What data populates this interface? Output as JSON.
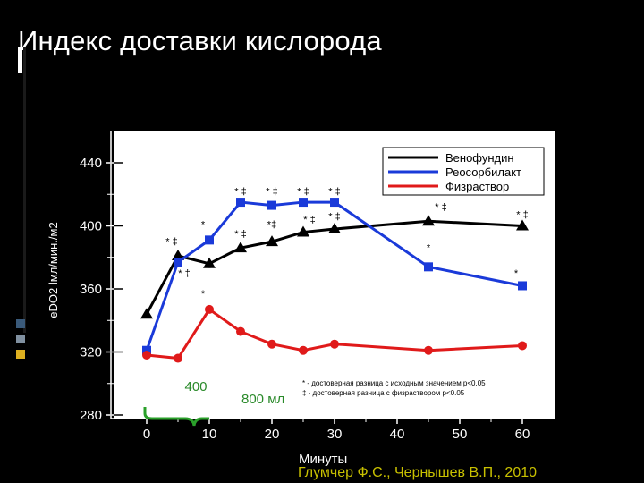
{
  "page": {
    "title": "Индекс доставки кислорода",
    "credit": "Глумчер Ф.С., Чернышев В.П., 2010"
  },
  "chart_data": {
    "type": "line",
    "xlabel": "Минуты",
    "ylabel": "eDO2 lмл/мин./м2",
    "xticks": [
      0,
      10,
      20,
      30,
      40,
      50,
      60
    ],
    "yticks": [
      280,
      320,
      360,
      400,
      440
    ],
    "xlim": [
      -5,
      65
    ],
    "ylim": [
      280,
      450
    ],
    "grid": false,
    "legend_position": "top-right",
    "series": [
      {
        "name": "Венофундин",
        "color": "#000000",
        "marker": "triangle",
        "x": [
          0,
          5,
          10,
          15,
          20,
          25,
          30,
          45,
          60
        ],
        "y": [
          344,
          381,
          376,
          386,
          390,
          396,
          398,
          403,
          400
        ]
      },
      {
        "name": "Реосорбилакт",
        "color": "#1a3ad9",
        "marker": "square",
        "x": [
          0,
          5,
          10,
          15,
          20,
          25,
          30,
          45,
          60
        ],
        "y": [
          321,
          377,
          391,
          415,
          413,
          415,
          415,
          374,
          362
        ]
      },
      {
        "name": "Физраствор",
        "color": "#e01a1a",
        "marker": "circle",
        "x": [
          0,
          5,
          10,
          15,
          20,
          25,
          30,
          45,
          60
        ],
        "y": [
          318,
          316,
          347,
          333,
          325,
          321,
          325,
          321,
          324
        ]
      }
    ],
    "annotations": [
      {
        "x": 4,
        "y": 388,
        "text": "* ‡"
      },
      {
        "x": 9,
        "y": 399,
        "text": "*"
      },
      {
        "x": 6,
        "y": 368,
        "text": "* ‡"
      },
      {
        "x": 10,
        "y": 371,
        "text": "*"
      },
      {
        "x": 9,
        "y": 355,
        "text": "*"
      },
      {
        "x": 15,
        "y": 420,
        "text": "* ‡"
      },
      {
        "x": 15,
        "y": 393,
        "text": "* ‡"
      },
      {
        "x": 20,
        "y": 420,
        "text": "* ‡"
      },
      {
        "x": 20,
        "y": 399,
        "text": "*‡"
      },
      {
        "x": 25,
        "y": 420,
        "text": "* ‡"
      },
      {
        "x": 26,
        "y": 402,
        "text": "* ‡"
      },
      {
        "x": 30,
        "y": 420,
        "text": "* ‡"
      },
      {
        "x": 30,
        "y": 404,
        "text": "* ‡"
      },
      {
        "x": 47,
        "y": 410,
        "text": "*  ‡"
      },
      {
        "x": 45,
        "y": 384,
        "text": "*"
      },
      {
        "x": 60,
        "y": 405,
        "text": "* ‡"
      },
      {
        "x": 59,
        "y": 368,
        "text": "*"
      }
    ],
    "volume_labels": [
      {
        "text": "400",
        "x": 7.5,
        "y": 298
      },
      {
        "text": "800 мл",
        "x": 20.5,
        "y": 294
      }
    ],
    "footnotes": [
      "* - достоверная разница с исходным значением р<0.05",
      "‡ - достоверная разница с физраствором р<0.05"
    ]
  }
}
